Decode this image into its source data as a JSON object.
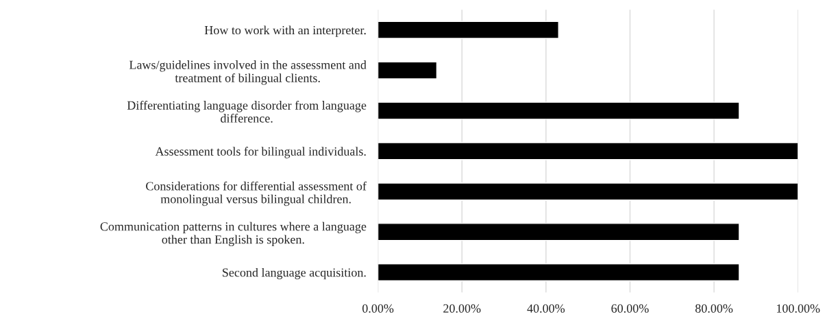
{
  "chart_data": {
    "type": "bar",
    "orientation": "horizontal",
    "categories": [
      "How to work with an interpreter.",
      "Laws/guidelines involved in the assessment and\ntreatment of bilingual clients.",
      "Differentiating language disorder from language\ndifference.",
      "Assessment tools for bilingual individuals.",
      "Considerations for differential assessment of\nmonolingual versus bilingual children.",
      "Communication patterns in cultures where a language\nother than English is spoken.",
      "Second language acquisition."
    ],
    "values": [
      43,
      14,
      86,
      100,
      100,
      86,
      86
    ],
    "color": "#000000",
    "xlim": [
      0,
      100
    ],
    "xticks": [
      {
        "value": 0,
        "label": "0.00%"
      },
      {
        "value": 20,
        "label": "20.00%"
      },
      {
        "value": 40,
        "label": "40.00%"
      },
      {
        "value": 60,
        "label": "60.00%"
      },
      {
        "value": 80,
        "label": "80.00%"
      },
      {
        "value": 100,
        "label": "100.00%"
      }
    ],
    "grid": "x"
  }
}
